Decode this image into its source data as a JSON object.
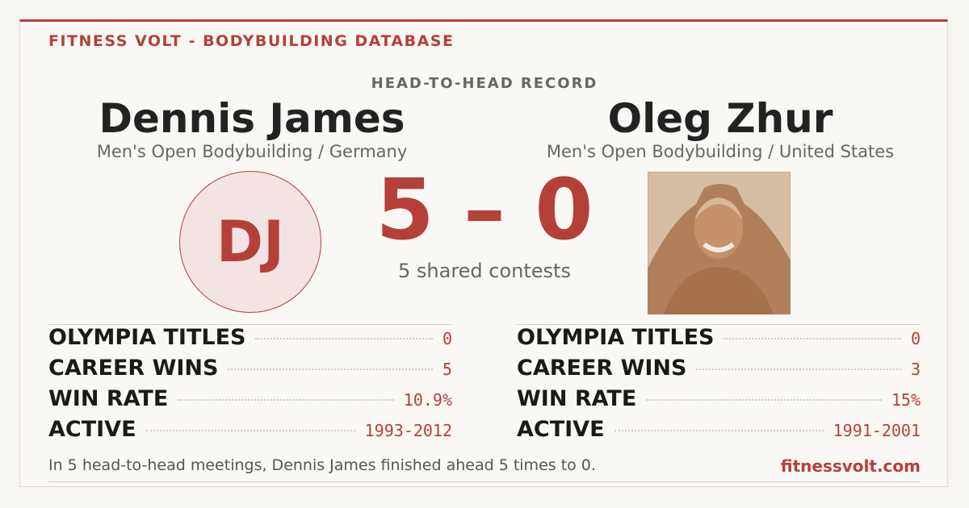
{
  "header": {
    "brand": "FITNESS VOLT - BODYBUILDING DATABASE",
    "kicker": "HEAD-TO-HEAD RECORD"
  },
  "fighters": [
    {
      "name": "Dennis James",
      "division": "Men's Open Bodybuilding / Germany",
      "initials": "DJ",
      "stats": [
        {
          "label": "OLYMPIA TITLES",
          "value": "0"
        },
        {
          "label": "CAREER WINS",
          "value": "5"
        },
        {
          "label": "WIN RATE",
          "value": "10.9%"
        },
        {
          "label": "ACTIVE",
          "value": "1993-2012"
        }
      ]
    },
    {
      "name": "Oleg Zhur",
      "division": "Men's Open Bodybuilding / United States",
      "stats": [
        {
          "label": "OLYMPIA TITLES",
          "value": "0"
        },
        {
          "label": "CAREER WINS",
          "value": "3"
        },
        {
          "label": "WIN RATE",
          "value": "15%"
        },
        {
          "label": "ACTIVE",
          "value": "1991-2001"
        }
      ]
    }
  ],
  "score": "5 – 0",
  "shared": "5 shared contests",
  "footer": {
    "summary": "In 5 head-to-head meetings, Dennis James finished ahead 5 times to 0.",
    "site": "fitnessvolt.com"
  }
}
